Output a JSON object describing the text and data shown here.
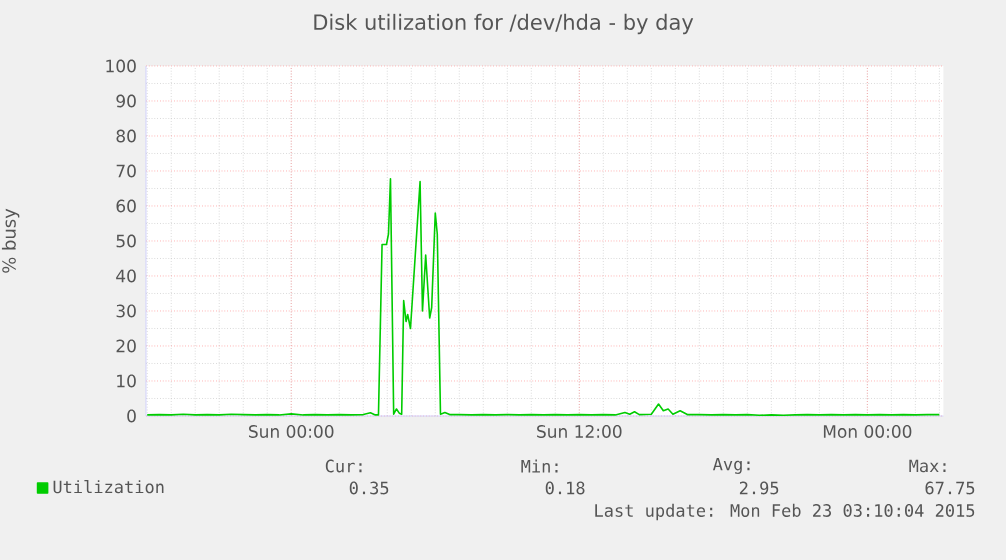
{
  "chart_data": {
    "type": "line",
    "title": "Disk utilization for /dev/hda - by day",
    "ylabel": "% busy",
    "x": [
      "2015-02-21T18:00",
      "2015-02-21T18:30",
      "2015-02-21T19:00",
      "2015-02-21T19:30",
      "2015-02-21T20:00",
      "2015-02-21T20:30",
      "2015-02-21T21:00",
      "2015-02-21T21:30",
      "2015-02-21T22:00",
      "2015-02-21T22:30",
      "2015-02-21T23:00",
      "2015-02-21T23:30",
      "2015-02-22T00:00",
      "2015-02-22T00:30",
      "2015-02-22T01:00",
      "2015-02-22T01:30",
      "2015-02-22T02:00",
      "2015-02-22T02:30",
      "2015-02-22T03:00",
      "2015-02-22T03:18",
      "2015-02-22T03:30",
      "2015-02-22T03:38",
      "2015-02-22T03:47",
      "2015-02-22T03:58",
      "2015-02-22T04:03",
      "2015-02-22T04:08",
      "2015-02-22T04:16",
      "2015-02-22T04:23",
      "2015-02-22T04:30",
      "2015-02-22T04:36",
      "2015-02-22T04:41",
      "2015-02-22T04:47",
      "2015-02-22T04:51",
      "2015-02-22T04:58",
      "2015-02-22T05:22",
      "2015-02-22T05:28",
      "2015-02-22T05:36",
      "2015-02-22T05:46",
      "2015-02-22T05:51",
      "2015-02-22T06:00",
      "2015-02-22T06:05",
      "2015-02-22T06:13",
      "2015-02-22T06:24",
      "2015-02-22T06:36",
      "2015-02-22T07:00",
      "2015-02-22T07:30",
      "2015-02-22T08:00",
      "2015-02-22T08:30",
      "2015-02-22T09:00",
      "2015-02-22T09:30",
      "2015-02-22T10:00",
      "2015-02-22T10:30",
      "2015-02-22T11:00",
      "2015-02-22T11:30",
      "2015-02-22T12:00",
      "2015-02-22T12:30",
      "2015-02-22T13:00",
      "2015-02-22T13:30",
      "2015-02-22T13:54",
      "2015-02-22T14:06",
      "2015-02-22T14:18",
      "2015-02-22T14:30",
      "2015-02-22T15:00",
      "2015-02-22T15:18",
      "2015-02-22T15:30",
      "2015-02-22T15:42",
      "2015-02-22T15:54",
      "2015-02-22T16:12",
      "2015-02-22T16:30",
      "2015-02-22T17:00",
      "2015-02-22T17:30",
      "2015-02-22T18:00",
      "2015-02-22T18:30",
      "2015-02-22T19:00",
      "2015-02-22T19:30",
      "2015-02-22T20:00",
      "2015-02-22T20:30",
      "2015-02-22T21:00",
      "2015-02-22T21:30",
      "2015-02-22T22:00",
      "2015-02-22T22:30",
      "2015-02-22T23:00",
      "2015-02-22T23:30",
      "2015-02-23T00:00",
      "2015-02-23T00:30",
      "2015-02-23T01:00",
      "2015-02-23T01:30",
      "2015-02-23T02:00",
      "2015-02-23T02:30",
      "2015-02-23T03:00"
    ],
    "series": [
      {
        "name": "Utilization",
        "color": "#00cc00",
        "values": [
          0.3,
          0.4,
          0.3,
          0.5,
          0.3,
          0.4,
          0.3,
          0.5,
          0.4,
          0.3,
          0.4,
          0.3,
          0.6,
          0.3,
          0.4,
          0.3,
          0.4,
          0.3,
          0.4,
          0.9,
          0.3,
          0.3,
          49,
          49,
          52,
          67.8,
          0.5,
          2,
          0.8,
          0.5,
          33,
          27,
          29,
          25,
          67,
          30,
          46,
          28,
          31,
          58,
          52,
          0.5,
          1,
          0.4,
          0.4,
          0.3,
          0.4,
          0.3,
          0.4,
          0.3,
          0.4,
          0.3,
          0.4,
          0.3,
          0.4,
          0.3,
          0.4,
          0.3,
          1,
          0.5,
          1.2,
          0.4,
          0.5,
          3.4,
          1.5,
          2,
          0.5,
          1.5,
          0.4,
          0.4,
          0.3,
          0.4,
          0.3,
          0.4,
          0.2,
          0.3,
          0.2,
          0.3,
          0.4,
          0.3,
          0.4,
          0.3,
          0.4,
          0.3,
          0.4,
          0.3,
          0.4,
          0.3,
          0.4,
          0.4
        ]
      }
    ],
    "xlim": [
      "2015-02-21T17:57",
      "2015-02-23T03:10"
    ],
    "ylim": [
      0,
      100
    ],
    "xticks": [
      {
        "value": "2015-02-22T00:00",
        "label": "Sun 00:00"
      },
      {
        "value": "2015-02-22T12:00",
        "label": "Sun 12:00"
      },
      {
        "value": "2015-02-23T00:00",
        "label": "Mon 00:00"
      }
    ],
    "yticks": [
      0,
      10,
      20,
      30,
      40,
      50,
      60,
      70,
      80,
      90,
      100
    ],
    "grid": true,
    "legend": "bottom left",
    "marker": "none",
    "line_style": "solid",
    "annotations": [
      "Cur:",
      "Min:",
      "Avg:",
      "Max:",
      "0.35",
      "0.18",
      "2.95",
      "67.75",
      "Last update: Mon Feb 23 03:10:04 2015"
    ]
  }
}
